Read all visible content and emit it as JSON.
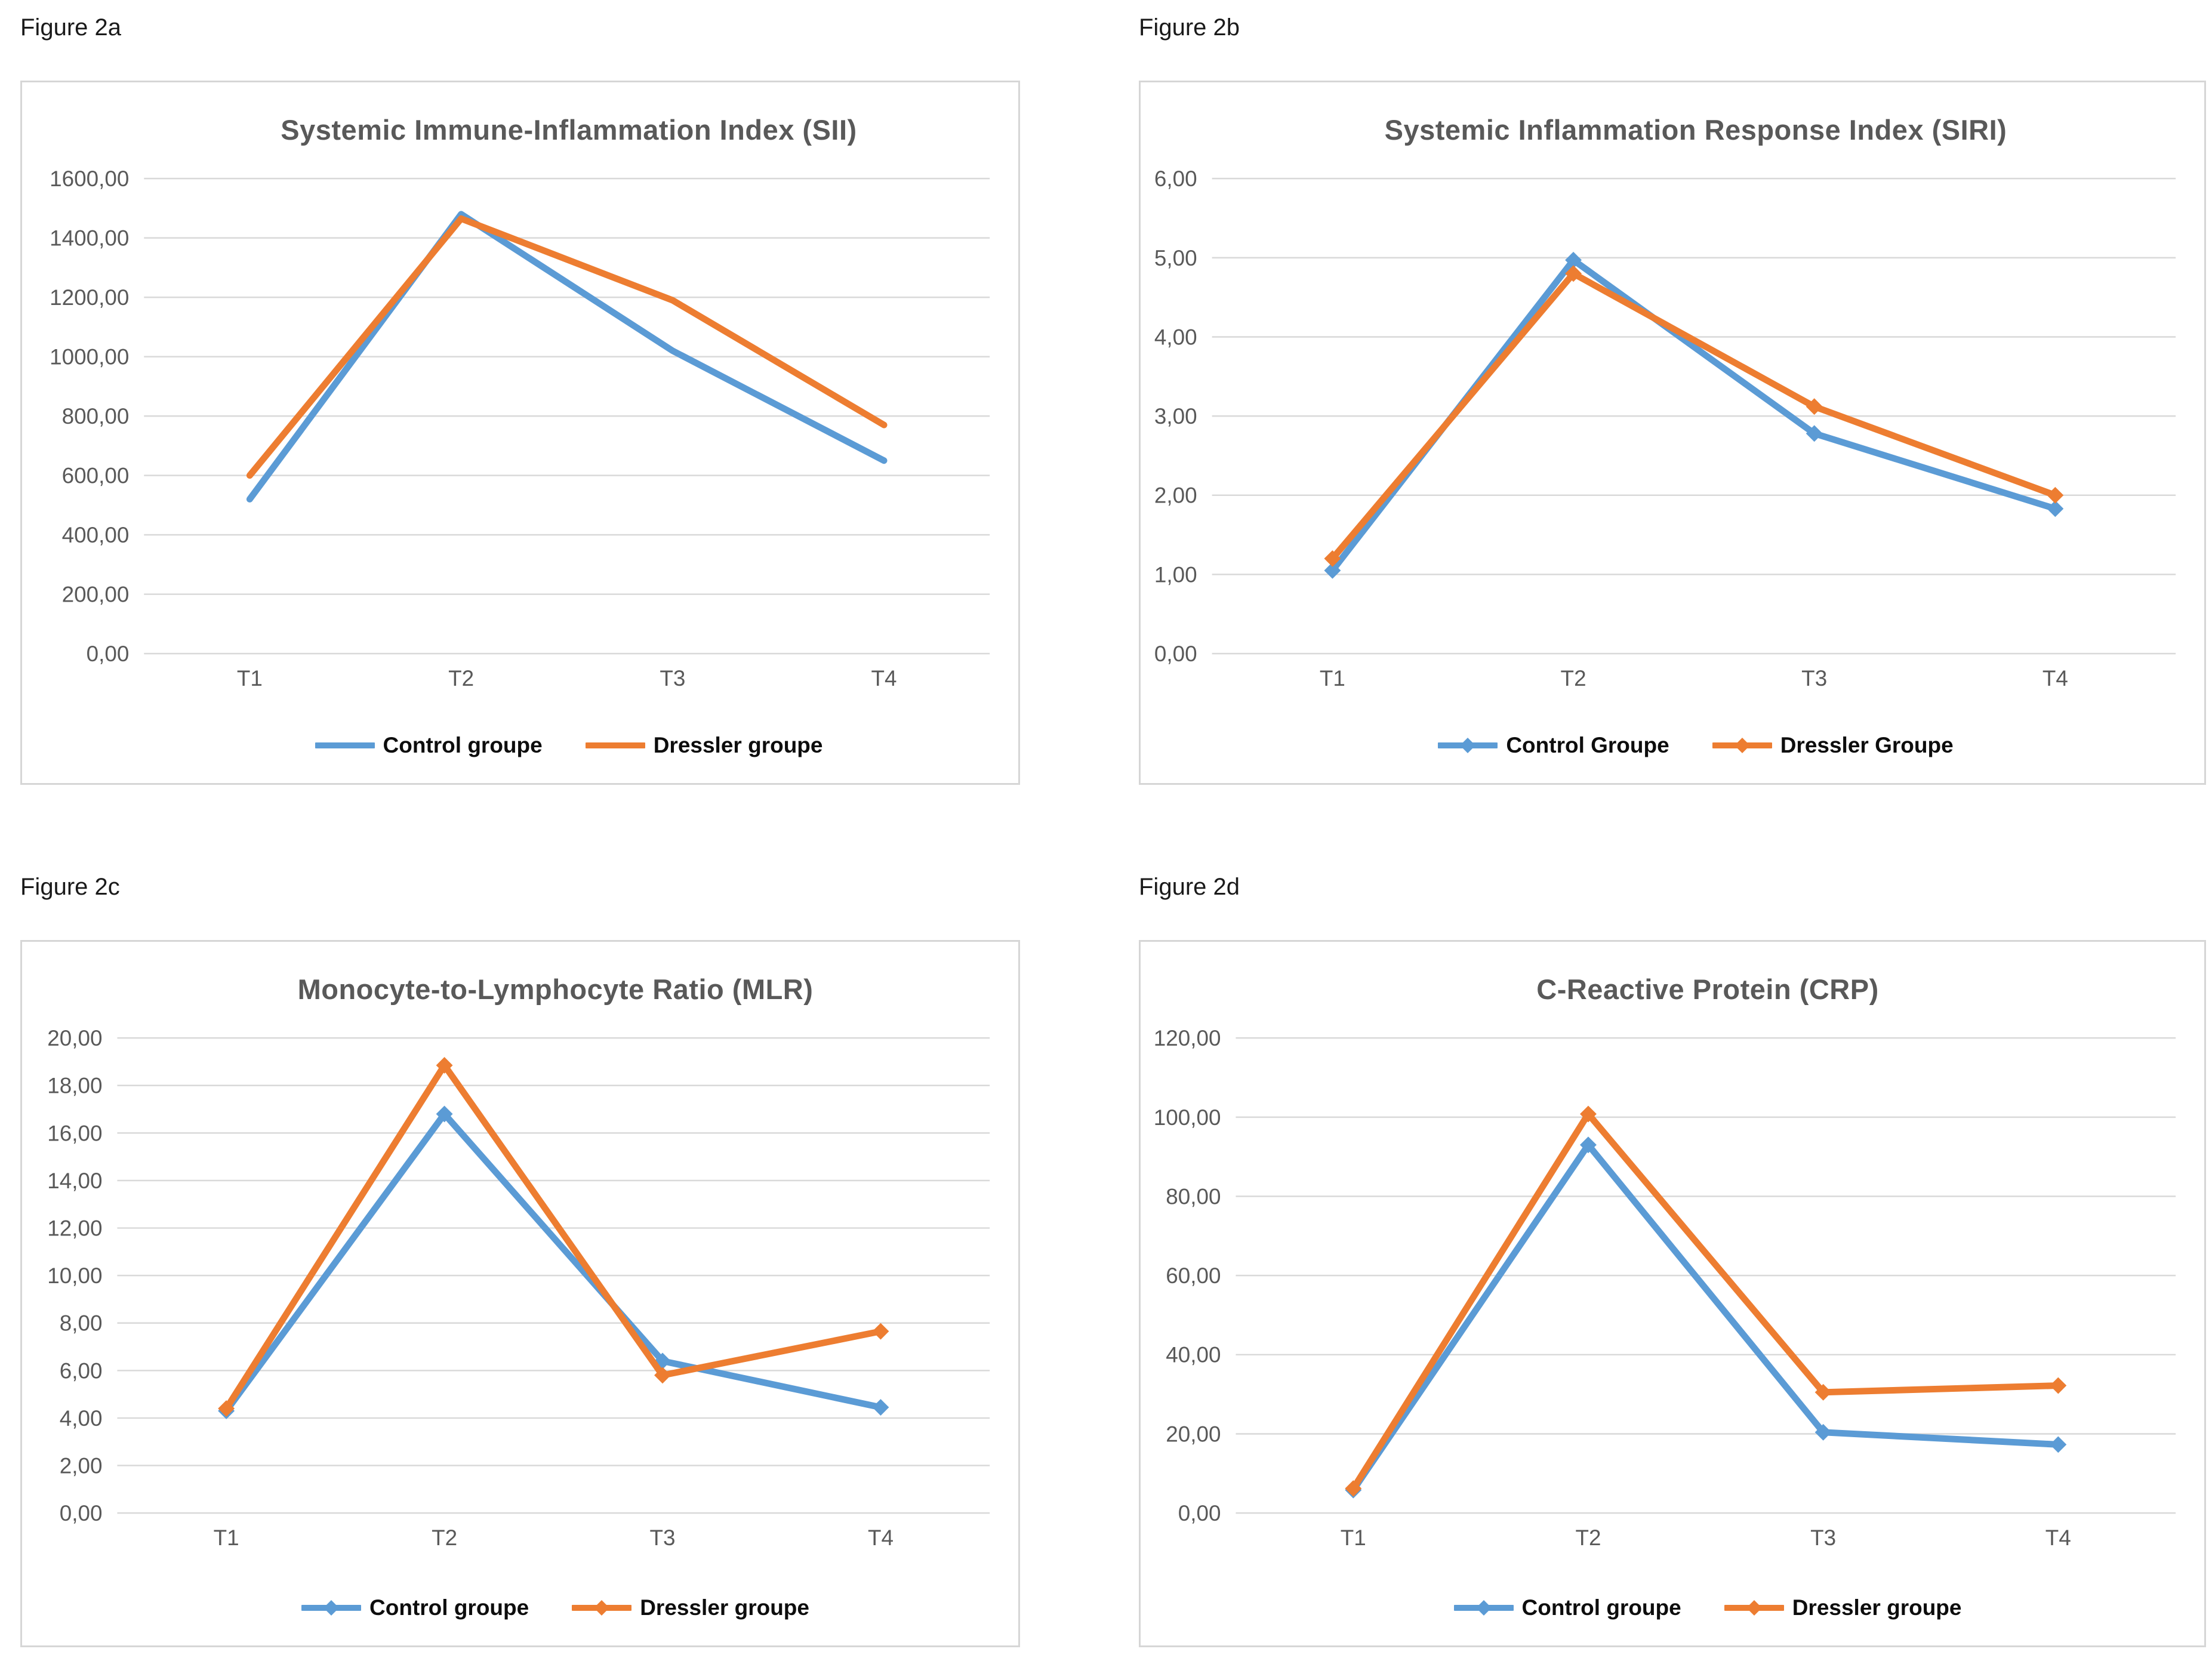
{
  "colors": {
    "control": "#5B9BD5",
    "dressler": "#ED7D31",
    "grid": "#D9D9D9",
    "axis_text": "#595959",
    "title_text": "#595959",
    "legend_text": "#0d0d0d",
    "panel_border": "#D6D6D6"
  },
  "figures": [
    {
      "label": "Figure 2a"
    },
    {
      "label": "Figure 2b"
    },
    {
      "label": "Figure 2c"
    },
    {
      "label": "Figure 2d"
    }
  ],
  "chart_data": [
    {
      "type": "line",
      "title": "Systemic Immune-Inflammation Index (SII)",
      "categories": [
        "T1",
        "T2",
        "T3",
        "T4"
      ],
      "series": [
        {
          "name": "Control groupe",
          "color_key": "control",
          "markers": false,
          "values": [
            520,
            1480,
            1020,
            650
          ]
        },
        {
          "name": "Dressler groupe",
          "color_key": "dressler",
          "markers": false,
          "values": [
            600,
            1465,
            1190,
            770
          ]
        }
      ],
      "ylim": [
        0,
        1600
      ],
      "ytick_step": 200,
      "ytick_labels": [
        "0,00",
        "200,00",
        "400,00",
        "600,00",
        "800,00",
        "1000,00",
        "1200,00",
        "1400,00",
        "1600,00"
      ],
      "xlabel": "",
      "ylabel": "",
      "grid": true,
      "legend_position": "bottom"
    },
    {
      "type": "line",
      "title": "Systemic Inflammation Response Index (SIRI)",
      "categories": [
        "T1",
        "T2",
        "T3",
        "T4"
      ],
      "series": [
        {
          "name": "Control Groupe",
          "color_key": "control",
          "markers": true,
          "values": [
            1.05,
            4.97,
            2.78,
            1.83
          ]
        },
        {
          "name": "Dressler Groupe",
          "color_key": "dressler",
          "markers": true,
          "values": [
            1.2,
            4.8,
            3.12,
            2.0
          ]
        }
      ],
      "ylim": [
        0,
        6
      ],
      "ytick_step": 1,
      "ytick_labels": [
        "0,00",
        "1,00",
        "2,00",
        "3,00",
        "4,00",
        "5,00",
        "6,00"
      ],
      "xlabel": "",
      "ylabel": "",
      "grid": true,
      "legend_position": "bottom"
    },
    {
      "type": "line",
      "title": "Monocyte-to-Lymphocyte Ratio (MLR)",
      "categories": [
        "T1",
        "T2",
        "T3",
        "T4"
      ],
      "series": [
        {
          "name": "Control groupe",
          "color_key": "control",
          "markers": true,
          "values": [
            4.3,
            16.8,
            6.4,
            4.45
          ]
        },
        {
          "name": "Dressler groupe",
          "color_key": "dressler",
          "markers": true,
          "values": [
            4.4,
            18.85,
            5.8,
            7.65
          ]
        }
      ],
      "ylim": [
        0,
        20
      ],
      "ytick_step": 2,
      "ytick_labels": [
        "0,00",
        "2,00",
        "4,00",
        "6,00",
        "8,00",
        "10,00",
        "12,00",
        "14,00",
        "16,00",
        "18,00",
        "20,00"
      ],
      "xlabel": "",
      "ylabel": "",
      "grid": true,
      "legend_position": "bottom"
    },
    {
      "type": "line",
      "title": "C-Reactive Protein (CRP)",
      "categories": [
        "T1",
        "T2",
        "T3",
        "T4"
      ],
      "series": [
        {
          "name": "Control groupe",
          "color_key": "control",
          "markers": true,
          "values": [
            5.8,
            93,
            20.4,
            17.3
          ]
        },
        {
          "name": "Dressler groupe",
          "color_key": "dressler",
          "markers": true,
          "values": [
            6.2,
            100.8,
            30.5,
            32.2
          ]
        }
      ],
      "ylim": [
        0,
        120
      ],
      "ytick_step": 20,
      "ytick_labels": [
        "0,00",
        "20,00",
        "40,00",
        "60,00",
        "80,00",
        "100,00",
        "120,00"
      ],
      "xlabel": "",
      "ylabel": "",
      "grid": true,
      "legend_position": "bottom"
    }
  ]
}
